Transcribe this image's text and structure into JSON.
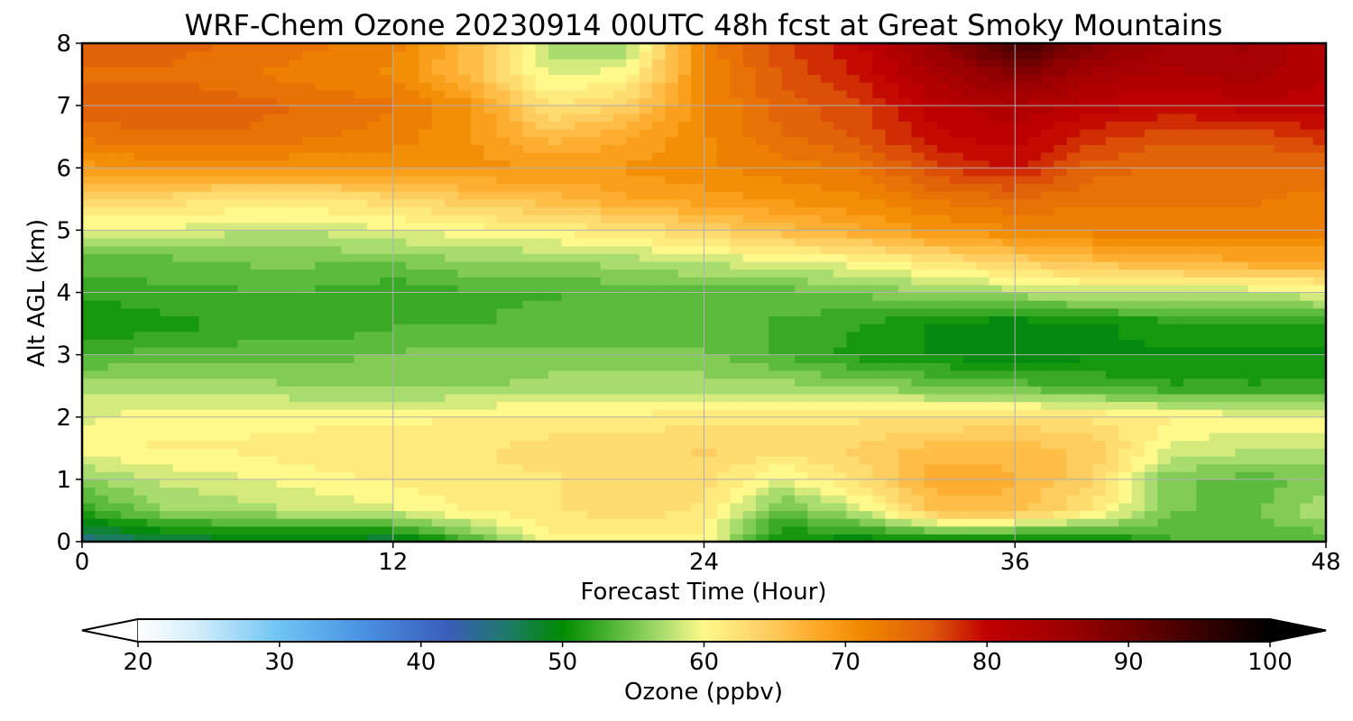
{
  "chart_data": {
    "type": "heatmap",
    "title": "WRF-Chem Ozone  20230914 00UTC 48h fcst at Great Smoky Mountains",
    "xlabel": "Forecast Time (Hour)",
    "ylabel": "Alt AGL (km)",
    "xlim": [
      0,
      48
    ],
    "ylim": [
      0,
      8
    ],
    "xticks": [
      0,
      12,
      24,
      36,
      48
    ],
    "yticks": [
      0,
      1,
      2,
      3,
      4,
      5,
      6,
      7,
      8
    ],
    "grid": true,
    "x_hours": [
      0,
      3,
      6,
      9,
      12,
      15,
      18,
      21,
      24,
      27,
      30,
      33,
      36,
      39,
      42,
      45,
      48
    ],
    "y_km": [
      0,
      0.5,
      1,
      1.5,
      2,
      2.5,
      3,
      3.5,
      4,
      4.5,
      5,
      5.5,
      6,
      6.5,
      7,
      7.5,
      8
    ],
    "ozone_ppbv": [
      [
        44,
        47,
        48,
        48,
        47,
        53,
        60,
        60,
        60,
        50,
        49,
        49,
        48,
        49,
        53,
        54,
        53
      ],
      [
        52,
        56,
        57,
        58,
        59,
        61,
        62,
        63,
        62,
        54,
        58,
        66,
        66,
        62,
        55,
        54,
        58
      ],
      [
        56,
        58,
        59,
        60,
        61,
        62,
        62,
        63,
        63,
        59,
        63,
        68,
        67,
        64,
        55,
        54,
        55
      ],
      [
        60,
        61,
        61,
        62,
        62,
        62,
        63,
        63,
        64,
        63,
        64,
        66,
        66,
        65,
        59,
        58,
        58
      ],
      [
        59,
        60,
        60,
        60,
        60,
        61,
        61,
        61,
        62,
        62,
        62,
        62,
        63,
        62,
        61,
        60,
        60
      ],
      [
        57,
        57,
        57,
        56,
        56,
        56,
        57,
        57,
        57,
        57,
        56,
        55,
        54,
        53,
        52,
        52,
        52
      ],
      [
        53,
        54,
        54,
        54,
        55,
        55,
        55,
        55,
        55,
        53,
        51,
        50,
        49,
        50,
        50,
        50,
        50
      ],
      [
        50,
        51,
        52,
        52,
        53,
        53,
        54,
        54,
        54,
        53,
        52,
        50,
        49,
        50,
        51,
        51,
        52
      ],
      [
        52,
        53,
        53,
        53,
        52,
        53,
        53,
        54,
        54,
        54,
        55,
        56,
        57,
        58,
        58,
        58,
        59
      ],
      [
        54,
        54,
        55,
        55,
        55,
        56,
        56,
        57,
        58,
        59,
        60,
        62,
        64,
        66,
        67,
        68,
        68
      ],
      [
        59,
        59,
        58,
        58,
        59,
        60,
        61,
        62,
        64,
        66,
        68,
        70,
        71,
        72,
        72,
        72,
        72
      ],
      [
        63,
        63,
        62,
        62,
        63,
        65,
        66,
        68,
        69,
        70,
        71,
        73,
        74,
        73,
        73,
        73,
        72
      ],
      [
        69,
        70,
        70,
        70,
        70,
        70,
        70,
        70,
        71,
        72,
        73,
        77,
        79,
        75,
        74,
        74,
        74
      ],
      [
        73,
        74,
        74,
        73,
        72,
        70,
        66,
        68,
        71,
        74,
        76,
        80,
        81,
        78,
        76,
        76,
        78
      ],
      [
        75,
        76,
        75,
        74,
        73,
        70,
        62,
        64,
        71,
        75,
        77,
        81,
        83,
        81,
        80,
        81,
        81
      ],
      [
        74,
        74,
        73,
        72,
        71,
        66,
        59,
        60,
        71,
        76,
        79,
        84,
        88,
        84,
        83,
        84,
        82
      ],
      [
        75,
        75,
        74,
        73,
        72,
        66,
        57,
        56,
        72,
        77,
        80,
        86,
        95,
        88,
        84,
        85,
        82
      ]
    ],
    "colorbar": {
      "label": "Ozone  (ppbv)",
      "min": 20,
      "max": 100,
      "ticks": [
        20,
        30,
        40,
        50,
        60,
        70,
        80,
        90,
        100
      ],
      "extend": "both",
      "orientation": "horizontal",
      "stops": [
        [
          20,
          "#ffffff"
        ],
        [
          24,
          "#d6eefb"
        ],
        [
          30,
          "#6ec4f3"
        ],
        [
          36,
          "#4a90e2"
        ],
        [
          42,
          "#3a5db8"
        ],
        [
          46,
          "#1f7a6c"
        ],
        [
          50,
          "#008c00"
        ],
        [
          54,
          "#5cbb3c"
        ],
        [
          57,
          "#a8dc6e"
        ],
        [
          60,
          "#fff88a"
        ],
        [
          64,
          "#fed267"
        ],
        [
          68,
          "#fda928"
        ],
        [
          71,
          "#f08a00"
        ],
        [
          76,
          "#df5a0a"
        ],
        [
          80,
          "#c00000"
        ],
        [
          86,
          "#9a0000"
        ],
        [
          92,
          "#5c0000"
        ],
        [
          100,
          "#000000"
        ]
      ]
    }
  }
}
